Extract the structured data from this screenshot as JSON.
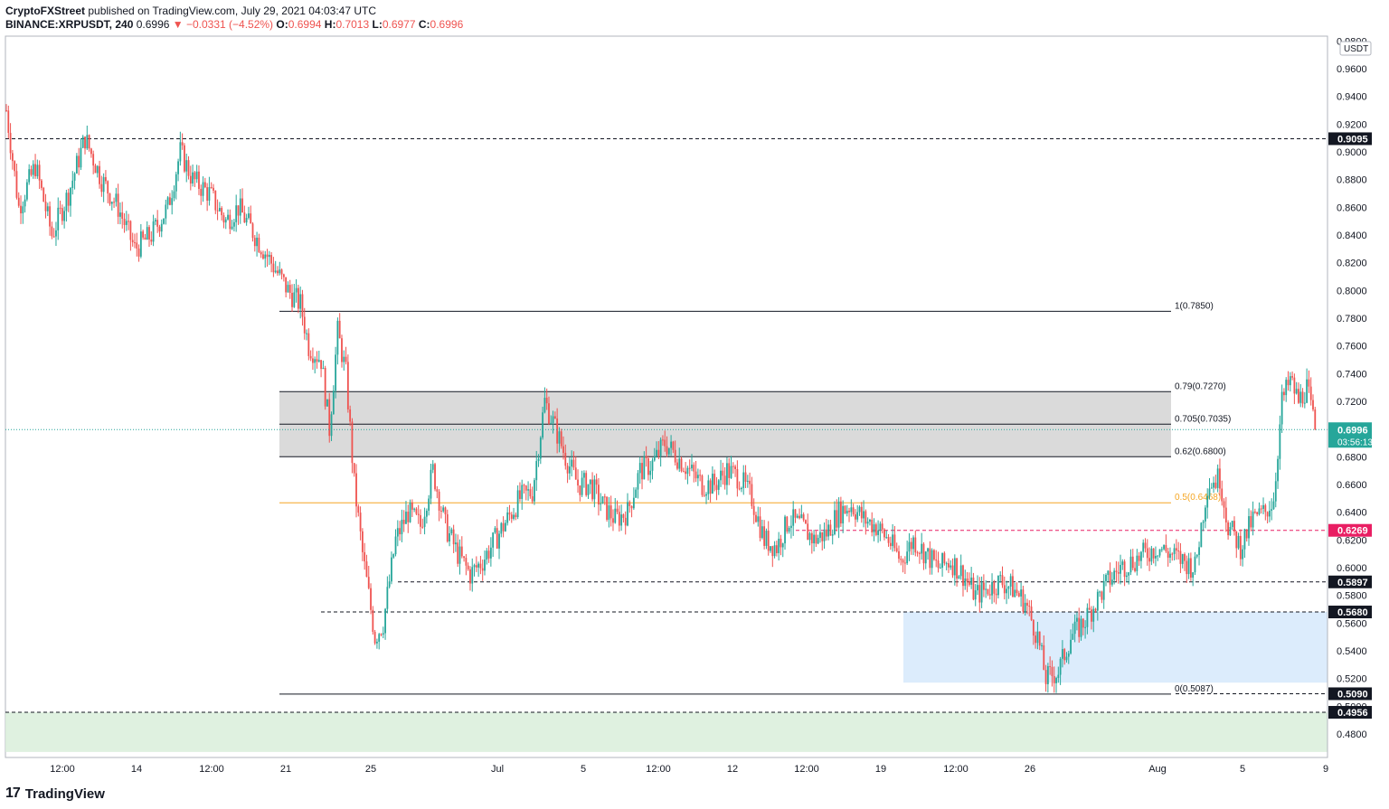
{
  "header": {
    "publisher": "CryptoFXStreet",
    "published_text": "published on TradingView.com, July 29, 2021 04:03:47 UTC",
    "symbol": "BINANCE:XRPUSDT, 240",
    "last": "0.6996",
    "change": "▼ −0.0331 (−4.52%)",
    "o_label": "O:",
    "o_val": "0.6994",
    "h_label": "H:",
    "h_val": "0.7013",
    "l_label": "L:",
    "l_val": "0.6977",
    "c_label": "C:",
    "c_val": "0.6996"
  },
  "footer": {
    "brand": "TradingView",
    "logo_glyph": "17"
  },
  "chart_data": {
    "type": "candlestick",
    "currency_label": "USDT",
    "ylim": [
      0.463,
      0.9835
    ],
    "x_ticks": [
      "12:00",
      "14",
      "12:00",
      "21",
      "25",
      "Jul",
      "5",
      "12:00",
      "12",
      "12:00",
      "19",
      "12:00",
      "26",
      "Aug",
      "5",
      "9"
    ],
    "y_ticks": [
      "0.9800",
      "0.9600",
      "0.9400",
      "0.9200",
      "0.9000",
      "0.8800",
      "0.8600",
      "0.8400",
      "0.8200",
      "0.8000",
      "0.7800",
      "0.7600",
      "0.7400",
      "0.7200",
      "0.7000",
      "0.6800",
      "0.6600",
      "0.6400",
      "0.6200",
      "0.6000",
      "0.5800",
      "0.5600",
      "0.5400",
      "0.5200",
      "0.5000",
      "0.4800"
    ],
    "fib_levels": [
      {
        "label": "1(0.7850)",
        "value": 0.785
      },
      {
        "label": "0.79(0.7270)",
        "value": 0.727
      },
      {
        "label": "0.705(0.7035)",
        "value": 0.7035
      },
      {
        "label": "0.62(0.6800)",
        "value": 0.68
      },
      {
        "label": "0.5(0.6468)",
        "value": 0.6468
      },
      {
        "label": "0(0.5087)",
        "value": 0.5087
      }
    ],
    "horizontal_levels": [
      {
        "label": "0.9095",
        "value": 0.9095,
        "style": "black"
      },
      {
        "label": "0.6269",
        "value": 0.6269,
        "style": "red"
      },
      {
        "label": "0.5897",
        "value": 0.5897,
        "style": "black"
      },
      {
        "label": "0.5680",
        "value": 0.568,
        "style": "black"
      },
      {
        "label": "0.5090",
        "value": 0.509,
        "style": "black"
      },
      {
        "label": "0.4956",
        "value": 0.4956,
        "style": "black"
      }
    ],
    "current_price": {
      "label": "0.6996",
      "value": 0.6996,
      "countdown": "03:56:13"
    },
    "zones": [
      {
        "name": "fib-zone",
        "from": 0.68,
        "to": 0.727,
        "color": "#d4d4d4"
      },
      {
        "name": "demand-zone",
        "from": 0.517,
        "to": 0.568,
        "color": "#d6e9fb"
      },
      {
        "name": "support-zone",
        "from": 0.467,
        "to": 0.4956,
        "color": "#d9eedb"
      }
    ],
    "colors": {
      "up": "#26a69a",
      "down": "#ef5350",
      "fib_mid": "#f5a623",
      "level_red": "#e91e63"
    },
    "anchors": [
      [
        0,
        0.93
      ],
      [
        6,
        0.86
      ],
      [
        14,
        0.89
      ],
      [
        22,
        0.84
      ],
      [
        30,
        0.87
      ],
      [
        38,
        0.91
      ],
      [
        46,
        0.88
      ],
      [
        54,
        0.86
      ],
      [
        62,
        0.83
      ],
      [
        70,
        0.84
      ],
      [
        78,
        0.86
      ],
      [
        84,
        0.9
      ],
      [
        90,
        0.88
      ],
      [
        98,
        0.87
      ],
      [
        106,
        0.85
      ],
      [
        112,
        0.86
      ],
      [
        120,
        0.84
      ],
      [
        128,
        0.82
      ],
      [
        136,
        0.8
      ],
      [
        142,
        0.79
      ],
      [
        146,
        0.76
      ],
      [
        152,
        0.75
      ],
      [
        156,
        0.7
      ],
      [
        160,
        0.77
      ],
      [
        164,
        0.74
      ],
      [
        168,
        0.66
      ],
      [
        172,
        0.61
      ],
      [
        178,
        0.55
      ],
      [
        182,
        0.56
      ],
      [
        188,
        0.62
      ],
      [
        194,
        0.64
      ],
      [
        200,
        0.63
      ],
      [
        206,
        0.67
      ],
      [
        212,
        0.63
      ],
      [
        218,
        0.61
      ],
      [
        224,
        0.595
      ],
      [
        230,
        0.605
      ],
      [
        236,
        0.62
      ],
      [
        242,
        0.635
      ],
      [
        248,
        0.65
      ],
      [
        254,
        0.655
      ],
      [
        260,
        0.72
      ],
      [
        264,
        0.705
      ],
      [
        270,
        0.68
      ],
      [
        276,
        0.66
      ],
      [
        282,
        0.66
      ],
      [
        288,
        0.645
      ],
      [
        294,
        0.635
      ],
      [
        300,
        0.64
      ],
      [
        306,
        0.67
      ],
      [
        312,
        0.675
      ],
      [
        318,
        0.69
      ],
      [
        324,
        0.68
      ],
      [
        330,
        0.67
      ],
      [
        336,
        0.66
      ],
      [
        342,
        0.66
      ],
      [
        348,
        0.67
      ],
      [
        354,
        0.665
      ],
      [
        360,
        0.65
      ],
      [
        366,
        0.62
      ],
      [
        372,
        0.615
      ],
      [
        378,
        0.635
      ],
      [
        384,
        0.63
      ],
      [
        390,
        0.62
      ],
      [
        396,
        0.625
      ],
      [
        402,
        0.64
      ],
      [
        408,
        0.645
      ],
      [
        414,
        0.635
      ],
      [
        420,
        0.63
      ],
      [
        426,
        0.62
      ],
      [
        432,
        0.605
      ],
      [
        438,
        0.62
      ],
      [
        444,
        0.61
      ],
      [
        450,
        0.6
      ],
      [
        456,
        0.605
      ],
      [
        462,
        0.595
      ],
      [
        468,
        0.58
      ],
      [
        474,
        0.585
      ],
      [
        480,
        0.59
      ],
      [
        486,
        0.585
      ],
      [
        492,
        0.575
      ],
      [
        498,
        0.55
      ],
      [
        502,
        0.52
      ],
      [
        508,
        0.525
      ],
      [
        514,
        0.55
      ],
      [
        520,
        0.56
      ],
      [
        526,
        0.575
      ],
      [
        532,
        0.59
      ],
      [
        538,
        0.6
      ],
      [
        544,
        0.605
      ],
      [
        550,
        0.61
      ],
      [
        556,
        0.615
      ],
      [
        562,
        0.61
      ],
      [
        568,
        0.605
      ],
      [
        574,
        0.6
      ],
      [
        580,
        0.66
      ],
      [
        586,
        0.665
      ],
      [
        590,
        0.63
      ],
      [
        596,
        0.615
      ],
      [
        602,
        0.635
      ],
      [
        608,
        0.64
      ],
      [
        612,
        0.65
      ],
      [
        616,
        0.72
      ],
      [
        620,
        0.735
      ],
      [
        624,
        0.72
      ],
      [
        628,
        0.73
      ],
      [
        632,
        0.6996
      ]
    ]
  }
}
